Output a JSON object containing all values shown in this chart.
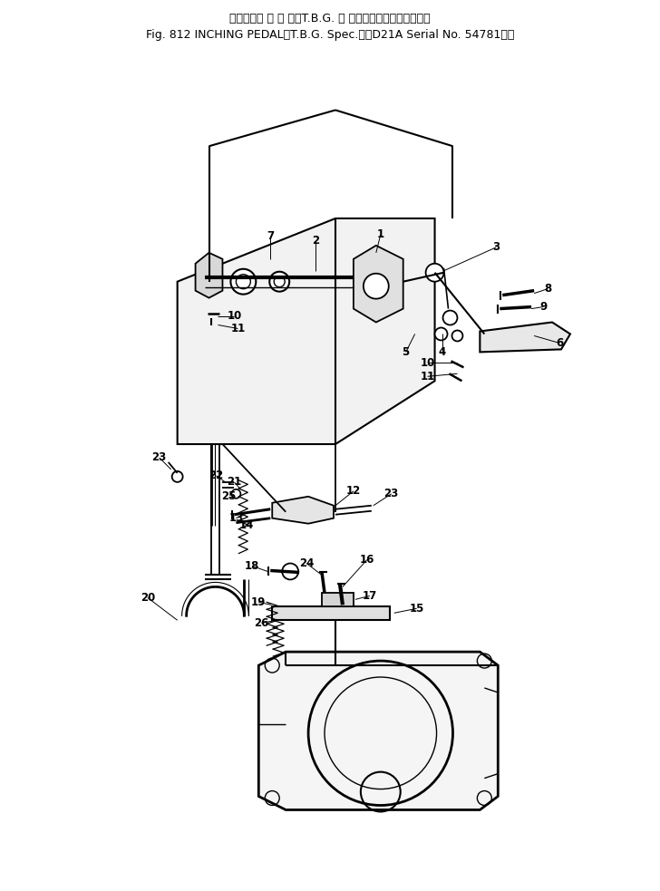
{
  "title_line1": "インチング ペ ダ ル（T.B.G. 仕 様）（　　適用号機　　　",
  "title_line2": "Fig. 812 INCHING PEDAL（T.B.G. Spec.）（D21A Serial No. 54781～）",
  "bg_color": "#ffffff",
  "fig_width": 7.28,
  "fig_height": 9.83,
  "dpi": 100
}
